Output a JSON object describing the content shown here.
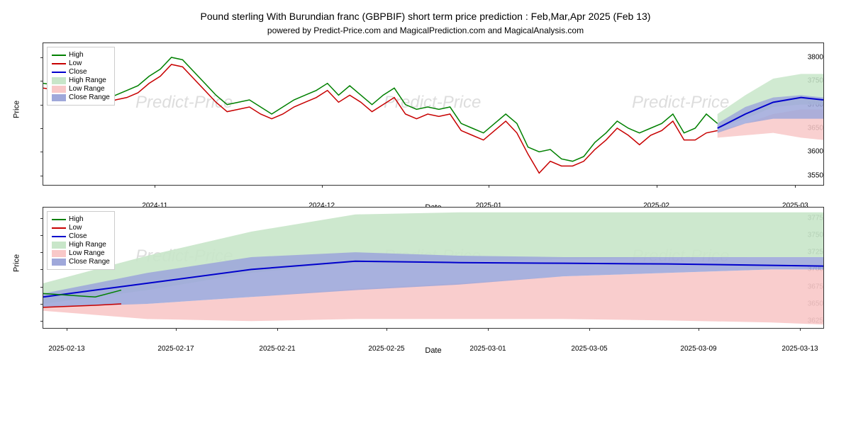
{
  "title_main": "Pound sterling With Burundian franc (GBPBIF) short term price prediction : Feb,Mar,Apr 2025 (Feb 13)",
  "title_sub": "powered by Predict-Price.com and MagicalPrediction.com and MagicalAnalysis.com",
  "watermarks": [
    "Predict-Price",
    "Predict-Price",
    "Predict-Price"
  ],
  "legend": {
    "items": [
      {
        "type": "line",
        "label": "High",
        "color": "#008000"
      },
      {
        "type": "line",
        "label": "Low",
        "color": "#c70000"
      },
      {
        "type": "line",
        "label": "Close",
        "color": "#0000cc"
      },
      {
        "type": "patch",
        "label": "High Range",
        "color": "#c8e6c9"
      },
      {
        "type": "patch",
        "label": "Low Range",
        "color": "#f8c8c8"
      },
      {
        "type": "patch",
        "label": "Close Range",
        "color": "#9fa8da"
      }
    ]
  },
  "chart_top": {
    "type": "line-area",
    "xlabel": "Date",
    "ylabel": "Price",
    "ylim": [
      3530,
      3830
    ],
    "yticks": [
      3550,
      3600,
      3650,
      3700,
      3750,
      3800
    ],
    "xticks": [
      "2024-11",
      "2024-12",
      "2025-01",
      "2025-02",
      "2025-03"
    ],
    "xtick_positions": [
      0.143,
      0.357,
      0.571,
      0.786,
      0.964
    ],
    "x_range_days": 140,
    "background_color": "#ffffff",
    "series": {
      "high": {
        "color": "#008000",
        "width": 1.5,
        "x": [
          0,
          3,
          5,
          7,
          9,
          11,
          13,
          15,
          17,
          19,
          21,
          23,
          25,
          27,
          29,
          31,
          33,
          35,
          37,
          39,
          41,
          43,
          45,
          47,
          49,
          51,
          53,
          55,
          57,
          59,
          61,
          63,
          65,
          67,
          69,
          71,
          73,
          75,
          77,
          79,
          81,
          83,
          85,
          87,
          89,
          91,
          93,
          95,
          97,
          99,
          101,
          103,
          105,
          107,
          109,
          111,
          113,
          115,
          117,
          119,
          121
        ],
        "y": [
          3745,
          3740,
          3745,
          3750,
          3740,
          3710,
          3720,
          3730,
          3740,
          3760,
          3775,
          3800,
          3795,
          3770,
          3745,
          3720,
          3700,
          3705,
          3710,
          3695,
          3680,
          3695,
          3710,
          3720,
          3730,
          3745,
          3720,
          3740,
          3720,
          3700,
          3720,
          3735,
          3700,
          3690,
          3695,
          3690,
          3695,
          3660,
          3650,
          3640,
          3660,
          3680,
          3660,
          3610,
          3600,
          3605,
          3585,
          3580,
          3590,
          3620,
          3640,
          3665,
          3650,
          3640,
          3650,
          3660,
          3680,
          3640,
          3650,
          3680,
          3660
        ]
      },
      "low": {
        "color": "#c70000",
        "width": 1.5,
        "x": [
          0,
          3,
          5,
          7,
          9,
          11,
          13,
          15,
          17,
          19,
          21,
          23,
          25,
          27,
          29,
          31,
          33,
          35,
          37,
          39,
          41,
          43,
          45,
          47,
          49,
          51,
          53,
          55,
          57,
          59,
          61,
          63,
          65,
          67,
          69,
          71,
          73,
          75,
          77,
          79,
          81,
          83,
          85,
          87,
          89,
          91,
          93,
          95,
          97,
          99,
          101,
          103,
          105,
          107,
          109,
          111,
          113,
          115,
          117,
          119,
          121
        ],
        "y": [
          3735,
          3730,
          3735,
          3740,
          3720,
          3700,
          3710,
          3715,
          3725,
          3745,
          3760,
          3785,
          3780,
          3755,
          3730,
          3705,
          3685,
          3690,
          3695,
          3680,
          3670,
          3680,
          3695,
          3705,
          3715,
          3730,
          3705,
          3720,
          3705,
          3685,
          3700,
          3715,
          3680,
          3670,
          3680,
          3675,
          3680,
          3645,
          3635,
          3625,
          3645,
          3665,
          3640,
          3595,
          3555,
          3580,
          3570,
          3570,
          3580,
          3605,
          3625,
          3650,
          3635,
          3615,
          3635,
          3645,
          3665,
          3625,
          3625,
          3640,
          3645
        ]
      }
    },
    "forecast": {
      "x_start": 121,
      "x_end": 140,
      "high_top": [
        3680,
        3720,
        3755,
        3765,
        3765
      ],
      "high_bot": [
        3650,
        3670,
        3695,
        3700,
        3700
      ],
      "close_top": [
        3660,
        3695,
        3715,
        3720,
        3715
      ],
      "close_bot": [
        3640,
        3660,
        3670,
        3670,
        3670
      ],
      "low_top": [
        3645,
        3660,
        3680,
        3690,
        3690
      ],
      "low_bot": [
        3630,
        3635,
        3640,
        3630,
        3625
      ],
      "close_line": [
        3650,
        3680,
        3705,
        3715,
        3710
      ],
      "x_points": [
        121,
        126,
        131,
        136,
        140
      ]
    }
  },
  "chart_bottom": {
    "type": "area",
    "xlabel": "Date",
    "ylabel": "Price",
    "ylim": [
      3615,
      3790
    ],
    "yticks": [
      3625,
      3650,
      3675,
      3700,
      3725,
      3750,
      3775
    ],
    "xticks": [
      "2025-02-13",
      "2025-02-17",
      "2025-02-21",
      "2025-02-25",
      "2025-03-01",
      "2025-03-05",
      "2025-03-09",
      "2025-03-13"
    ],
    "xtick_positions": [
      0.03,
      0.17,
      0.3,
      0.44,
      0.57,
      0.7,
      0.84,
      0.97
    ],
    "x_range": 30,
    "series": {
      "high_range": {
        "color": "#c8e6c9",
        "x": [
          0,
          4,
          8,
          12,
          16,
          20,
          24,
          28,
          30
        ],
        "top": [
          3680,
          3720,
          3755,
          3780,
          3783,
          3783,
          3783,
          3783,
          3783
        ],
        "bot": [
          3650,
          3670,
          3695,
          3710,
          3712,
          3715,
          3717,
          3718,
          3718
        ]
      },
      "low_range": {
        "color": "#f8c8c8",
        "x": [
          0,
          4,
          8,
          12,
          16,
          20,
          24,
          28,
          30
        ],
        "top": [
          3648,
          3650,
          3660,
          3672,
          3680,
          3690,
          3695,
          3700,
          3700
        ],
        "bot": [
          3640,
          3628,
          3625,
          3628,
          3628,
          3628,
          3626,
          3623,
          3620
        ]
      },
      "close_range": {
        "color": "#9fa8da",
        "x": [
          0,
          4,
          8,
          12,
          16,
          20,
          24,
          28,
          30
        ],
        "top": [
          3665,
          3695,
          3718,
          3725,
          3720,
          3718,
          3718,
          3718,
          3718
        ],
        "bot": [
          3645,
          3650,
          3660,
          3670,
          3678,
          3690,
          3695,
          3700,
          3700
        ]
      },
      "close_line": {
        "color": "#0000cc",
        "width": 2,
        "x": [
          0,
          4,
          8,
          12,
          16,
          20,
          24,
          28,
          30
        ],
        "y": [
          3660,
          3680,
          3700,
          3712,
          3710,
          3709,
          3708,
          3706,
          3705
        ]
      },
      "high_touch": {
        "color": "#008000",
        "width": 1.5,
        "x": [
          0,
          2,
          3
        ],
        "y": [
          3665,
          3660,
          3670
        ]
      },
      "low_touch": {
        "color": "#c70000",
        "width": 1.5,
        "x": [
          0,
          2,
          3
        ],
        "y": [
          3645,
          3648,
          3650
        ]
      }
    }
  }
}
